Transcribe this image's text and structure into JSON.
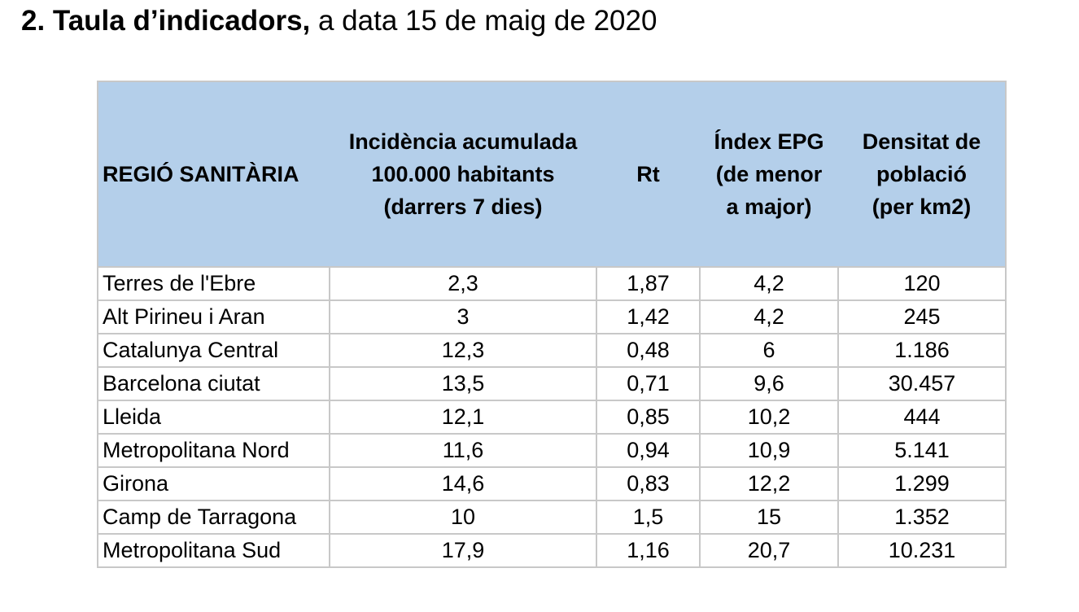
{
  "heading": {
    "bold": "2. Taula d’indicadors,",
    "rest": " a data 15 de maig de 2020"
  },
  "table": {
    "headers": [
      [
        "REGIÓ SANITÀRIA"
      ],
      [
        "Incidència acumulada",
        "100.000 habitants",
        "(darrers 7 dies)"
      ],
      [
        "Rt"
      ],
      [
        "Índex EPG",
        "(de menor",
        "a major)"
      ],
      [
        "Densitat de",
        "població",
        "(per km2)"
      ]
    ],
    "rows": [
      [
        "Terres de l'Ebre",
        "2,3",
        "1,87",
        "4,2",
        "120"
      ],
      [
        "Alt Pirineu i Aran",
        "3",
        "1,42",
        "4,2",
        "245"
      ],
      [
        "Catalunya Central",
        "12,3",
        "0,48",
        "6",
        "1.186"
      ],
      [
        "Barcelona ciutat",
        "13,5",
        "0,71",
        "9,6",
        "30.457"
      ],
      [
        "Lleida",
        "12,1",
        "0,85",
        "10,2",
        "444"
      ],
      [
        "Metropolitana Nord",
        "11,6",
        "0,94",
        "10,9",
        "5.141"
      ],
      [
        "Girona",
        "14,6",
        "0,83",
        "12,2",
        "1.299"
      ],
      [
        "Camp de Tarragona",
        "10",
        "1,5",
        "15",
        "1.352"
      ],
      [
        "Metropolitana Sud",
        "17,9",
        "1,16",
        "20,7",
        "10.231"
      ]
    ]
  },
  "colors": {
    "header_background": "#b4cfea",
    "grid_lines": "#c8c8c8"
  }
}
